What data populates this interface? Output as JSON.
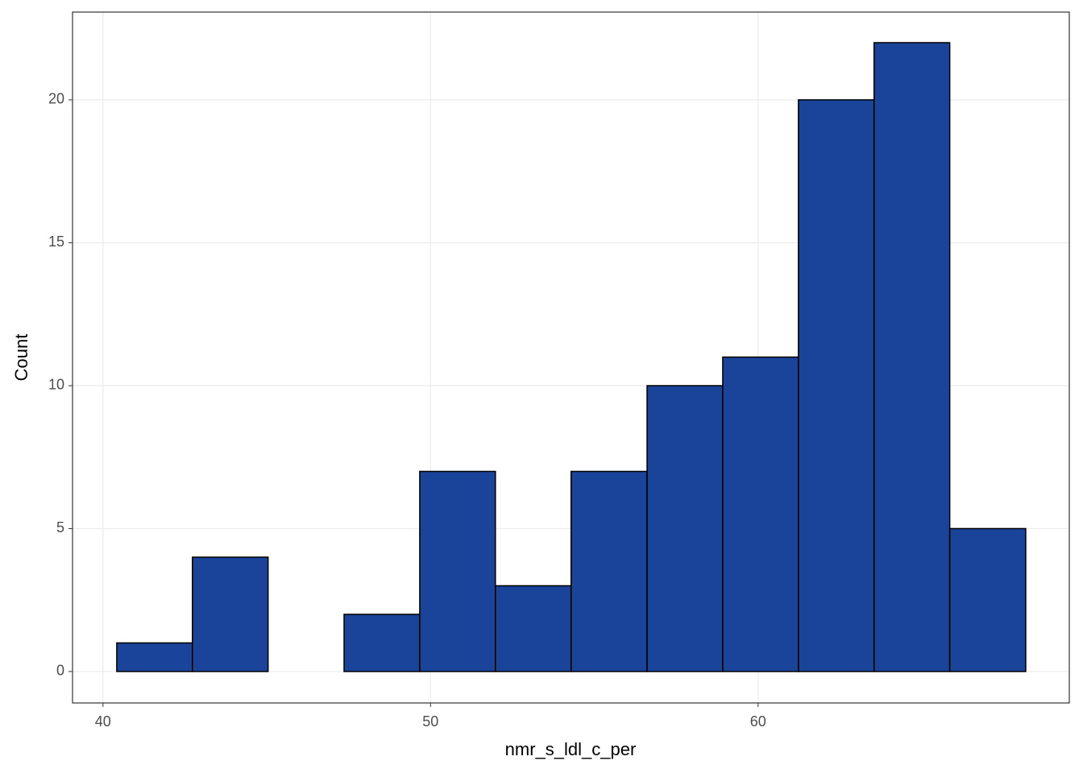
{
  "chart_data": {
    "type": "histogram",
    "x_label": "nmr_s_ldl_c_per",
    "y_label": "Count",
    "bins": [
      40.42,
      42.73,
      45.04,
      47.36,
      49.67,
      51.98,
      54.29,
      56.61,
      58.92,
      61.23,
      63.54,
      65.85,
      68.17
    ],
    "counts": [
      1,
      4,
      0,
      2,
      7,
      3,
      7,
      10,
      11,
      20,
      22,
      5
    ],
    "color": "#1a4499",
    "edge_color": "#000000",
    "xlim": [
      39.07,
      69.5
    ],
    "xticks": [
      40,
      50,
      60
    ],
    "ylim": [
      -1.1,
      23.07
    ],
    "yticks": [
      0,
      5,
      10,
      15,
      20
    ],
    "grid": true
  }
}
